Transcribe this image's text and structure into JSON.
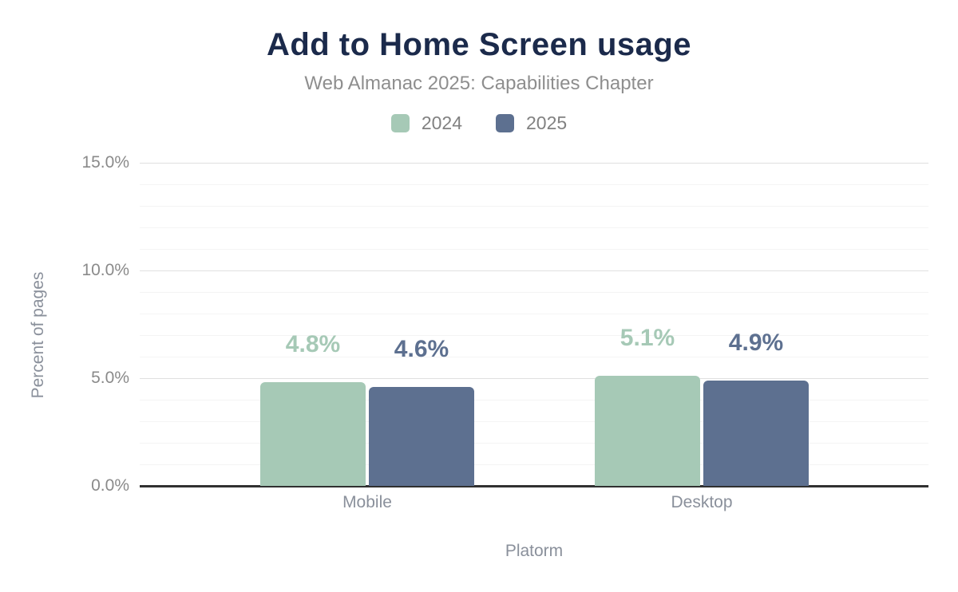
{
  "chart_data": {
    "type": "bar",
    "title": "Add to Home Screen usage",
    "subtitle": "Web Almanac 2025: Capabilities Chapter",
    "categories": [
      "Mobile",
      "Desktop"
    ],
    "series": [
      {
        "name": "2024",
        "color": "#a6c9b6",
        "values": [
          4.8,
          5.1
        ],
        "labels": [
          "4.8%",
          "5.1%"
        ]
      },
      {
        "name": "2025",
        "color": "#5d7090",
        "values": [
          4.6,
          4.9
        ],
        "labels": [
          "4.6%",
          "4.9%"
        ]
      }
    ],
    "xlabel": "Platorm",
    "ylabel": "Percent of pages",
    "ylim": [
      0,
      15
    ],
    "yticks": [
      0,
      5,
      10,
      15
    ],
    "ytick_labels": [
      "0.0%",
      "5.0%",
      "10.0%",
      "15.0%"
    ],
    "minor_grid_step": 1,
    "major_grid_step": 5,
    "grid": true,
    "legend_position": "top"
  },
  "colors": {
    "title": "#1b2a4b",
    "subtitle": "#8e8e8e",
    "tick_text": "#8a8a8a",
    "axis_title_text": "#8a909b",
    "legend_text": "#818181",
    "major_grid": "#e0e0e0",
    "minor_grid": "#f4f4f4",
    "axis_line": "#303030",
    "background": "#ffffff"
  }
}
